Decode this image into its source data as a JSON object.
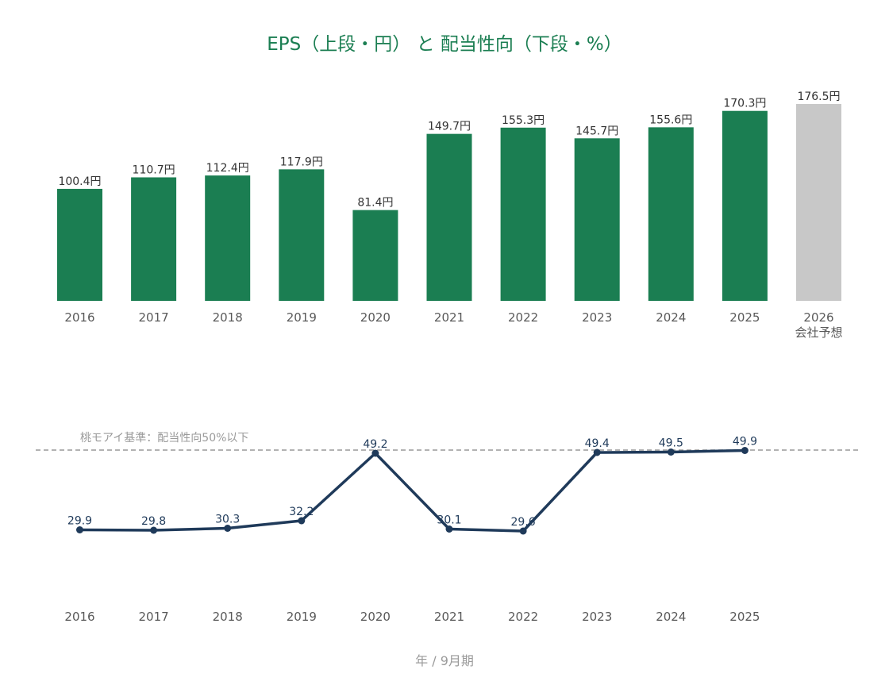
{
  "chart_data": [
    {
      "type": "bar",
      "title": "EPS（上段・円） と 配当性向（下段・%）",
      "categories": [
        "2016",
        "2017",
        "2018",
        "2019",
        "2020",
        "2021",
        "2022",
        "2023",
        "2024",
        "2025",
        "2026"
      ],
      "category_sublabels": [
        "",
        "",
        "",
        "",
        "",
        "",
        "",
        "",
        "",
        "",
        "会社予想"
      ],
      "values": [
        100.4,
        110.7,
        112.4,
        117.9,
        81.4,
        149.7,
        155.3,
        145.7,
        155.6,
        170.3,
        176.5
      ],
      "value_labels": [
        "100.4円",
        "110.7円",
        "112.4円",
        "117.9円",
        "81.4円",
        "149.7円",
        "155.3円",
        "145.7円",
        "155.6円",
        "170.3円",
        "176.5円"
      ],
      "forecast_index": 10,
      "ylim": [
        0,
        176.5
      ],
      "colors": {
        "actual": "#1b7e52",
        "forecast": "#c8c8c8"
      },
      "grid": false,
      "xlabel": "",
      "ylabel": ""
    },
    {
      "type": "line",
      "categories": [
        "2016",
        "2017",
        "2018",
        "2019",
        "2020",
        "2021",
        "2022",
        "2023",
        "2024",
        "2025"
      ],
      "values": [
        29.9,
        29.8,
        30.3,
        32.2,
        49.2,
        30.1,
        29.6,
        49.4,
        49.5,
        49.9
      ],
      "value_labels": [
        "29.9",
        "29.8",
        "30.3",
        "32.2",
        "49.2",
        "30.1",
        "29.6",
        "49.4",
        "49.5",
        "49.9"
      ],
      "reference_line": {
        "value": 50,
        "label": "桃モアイ基準：配当性向50%以下"
      },
      "ylim": [
        14,
        50
      ],
      "colors": {
        "line": "#1f3a5a",
        "reference": "#999999"
      },
      "grid": false,
      "xlabel": "年 / 9月期",
      "ylabel": ""
    }
  ]
}
